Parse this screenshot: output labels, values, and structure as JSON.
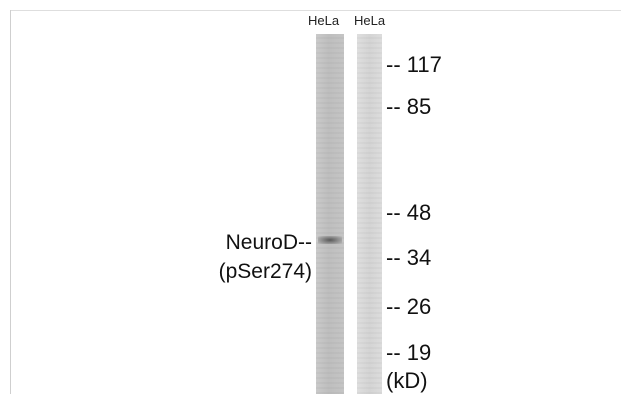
{
  "lanes": [
    {
      "label": "HeLa"
    },
    {
      "label": "HeLa"
    }
  ],
  "protein": {
    "line1": "NeuroD--",
    "line2": "(pSer274)"
  },
  "markers": [
    "-- 117",
    "-- 85",
    "-- 48",
    "-- 34",
    "-- 26",
    "-- 19"
  ],
  "unit": "(kD)"
}
